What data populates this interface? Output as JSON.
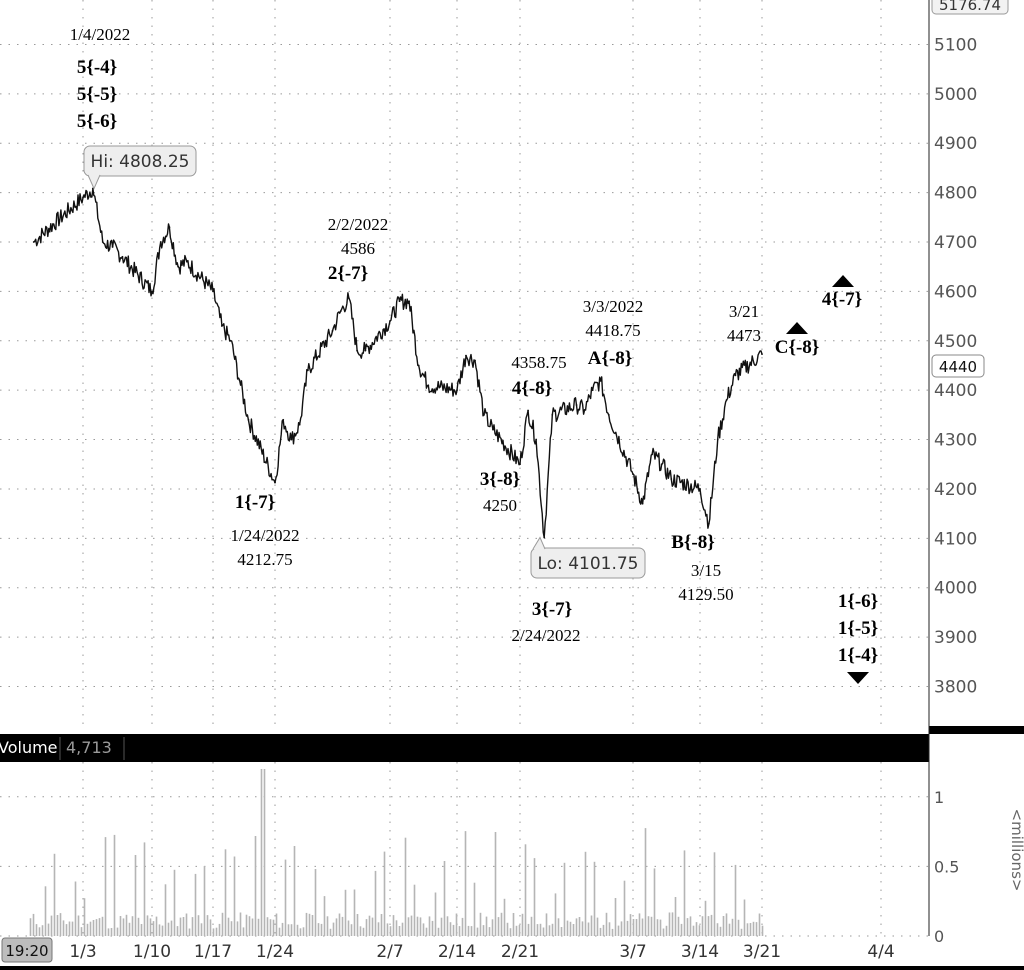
{
  "chart_data": {
    "type": "line",
    "title": "",
    "price_panel": {
      "y_axis_ticks": [
        3800,
        3900,
        4000,
        4100,
        4200,
        4300,
        4400,
        4500,
        4600,
        4700,
        4800,
        4900,
        5000,
        5100
      ],
      "ylim": [
        3720,
        5190
      ],
      "top_value_label": "5176.74",
      "last_price_label": "4440",
      "grid": true,
      "series": [
        {
          "values_note": "",
          "x": [
            "2021-12-29",
            "2022-01-03",
            "2022-01-04",
            "2022-01-05",
            "2022-01-06",
            "2022-01-07",
            "2022-01-10",
            "2022-01-11",
            "2022-01-12",
            "2022-01-13",
            "2022-01-14",
            "2022-01-17",
            "2022-01-18",
            "2022-01-19",
            "2022-01-20",
            "2022-01-21",
            "2022-01-24",
            "2022-01-25",
            "2022-01-26",
            "2022-01-27",
            "2022-01-28",
            "2022-01-31",
            "2022-02-01",
            "2022-02-02",
            "2022-02-03",
            "2022-02-04",
            "2022-02-07",
            "2022-02-08",
            "2022-02-09",
            "2022-02-10",
            "2022-02-11",
            "2022-02-14",
            "2022-02-15",
            "2022-02-16",
            "2022-02-17",
            "2022-02-18",
            "2022-02-21",
            "2022-02-22",
            "2022-02-23",
            "2022-02-24",
            "2022-02-25",
            "2022-02-28",
            "2022-03-01",
            "2022-03-02",
            "2022-03-03",
            "2022-03-04",
            "2022-03-07",
            "2022-03-08",
            "2022-03-09",
            "2022-03-10",
            "2022-03-11",
            "2022-03-14",
            "2022-03-15",
            "2022-03-16",
            "2022-03-17",
            "2022-03-18",
            "2022-03-21"
          ],
          "values": [
            4700,
            4790,
            4808.25,
            4700,
            4690,
            4670,
            4600,
            4700,
            4730,
            4650,
            4660,
            4600,
            4530,
            4500,
            4420,
            4340,
            4212.75,
            4340,
            4300,
            4330,
            4440,
            4520,
            4560,
            4586,
            4480,
            4480,
            4540,
            4580,
            4580,
            4450,
            4410,
            4400,
            4470,
            4460,
            4350,
            4320,
            4250,
            4358.75,
            4300,
            4101.75,
            4350,
            4370,
            4360,
            4400,
            4418.75,
            4350,
            4230,
            4170,
            4270,
            4250,
            4220,
            4200,
            4129.5,
            4300,
            4380,
            4430,
            4473
          ]
        }
      ]
    },
    "annotations": [
      {
        "lines": [
          "1/4/2022"
        ],
        "bold": false
      },
      {
        "lines": [
          "5{-4}",
          "5{-5}",
          "5{-6}"
        ],
        "bold": true
      },
      {
        "lines": [
          "Hi: 4808.25"
        ],
        "boxed": true
      },
      {
        "lines": [
          "2/2/2022",
          "4586"
        ],
        "bold": false
      },
      {
        "lines": [
          "2{-7}"
        ],
        "bold": true
      },
      {
        "lines": [
          "1{-7}"
        ],
        "bold": true
      },
      {
        "lines": [
          "1/24/2022",
          "4212.75"
        ],
        "bold": false
      },
      {
        "lines": [
          "4358.75"
        ],
        "bold": false
      },
      {
        "lines": [
          "4{-8}"
        ],
        "bold": true
      },
      {
        "lines": [
          "3{-8}"
        ],
        "bold": true
      },
      {
        "lines": [
          "4250"
        ],
        "bold": false
      },
      {
        "lines": [
          "3/3/2022",
          "4418.75"
        ],
        "bold": false
      },
      {
        "lines": [
          "A{-8}"
        ],
        "bold": true
      },
      {
        "lines": [
          "Lo: 4101.75"
        ],
        "boxed": true
      },
      {
        "lines": [
          "3{-7}"
        ],
        "bold": true
      },
      {
        "lines": [
          "2/24/2022"
        ],
        "bold": false
      },
      {
        "lines": [
          "B{-8}"
        ],
        "bold": true
      },
      {
        "lines": [
          "3/15",
          "4129.50"
        ],
        "bold": false
      },
      {
        "lines": [
          "3/21",
          "4473"
        ],
        "bold": false
      },
      {
        "lines": [
          "C{-8}"
        ],
        "bold": true
      },
      {
        "lines": [
          "4{-7}"
        ],
        "bold": true
      },
      {
        "lines": [
          "1{-6}",
          "1{-5}",
          "1{-4}"
        ],
        "bold": true
      }
    ],
    "volume_panel": {
      "label": "Volume",
      "value": "4,713",
      "y_axis_ticks": [
        "0",
        "0.5",
        "1"
      ],
      "y_unit": "<millions>",
      "ylim": [
        0,
        1.25
      ]
    },
    "x_axis": {
      "ticks": [
        "1/3",
        "1/10",
        "1/17",
        "1/24",
        "2/7",
        "2/14",
        "2/21",
        "3/7",
        "3/14",
        "3/21",
        "4/4"
      ],
      "time_label": "19:20"
    }
  }
}
